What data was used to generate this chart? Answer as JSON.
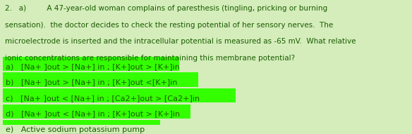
{
  "background_color": "#d4edbb",
  "highlight_color": "#33ff00",
  "text_color": "#1a5c00",
  "title_line1": "2.   a)         A 47-year-old woman complains of paresthesis (tingling, pricking or burning",
  "title_line2": "sensation).  the doctor decides to check the resting potential of her sensory nerves.  The",
  "title_line3": "microelectrode is inserted and the intracellular potential is measured as -65 mV.  What relative",
  "title_line4": "ionic concentrations are responsible for maintaining this membrane potential?",
  "options": [
    "a)   [Na+ ]out > [Na+] in ; [K+]out > [K+]in",
    "b)   [Na+ ]out > [Na+] in ; [K+]out <[K+]in",
    "c)   [Na+ ]out < [Na+] in ; [Ca2+]out > [Ca2+]in",
    "d)   [Na+ ]out < [Na+] in ; [K+]out > [K+]in",
    "e)   Active sodium potassium pump"
  ],
  "underline_words": "sodium potassium",
  "font_size_body": 7.5,
  "font_size_options": 8.0
}
